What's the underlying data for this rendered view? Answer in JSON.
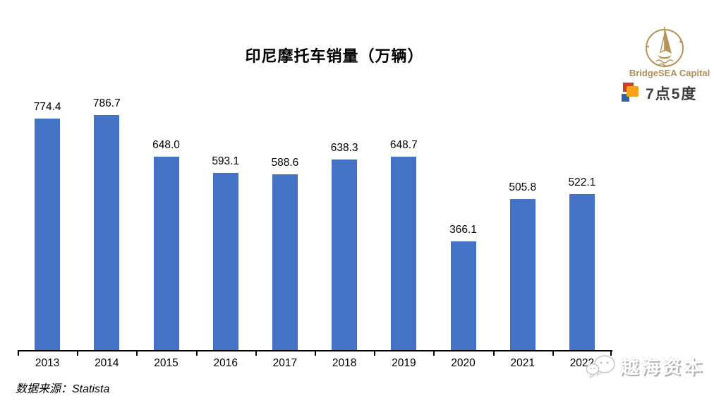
{
  "chart_data": {
    "type": "bar",
    "title": "印尼摩托车销量（万辆）",
    "categories": [
      "2013",
      "2014",
      "2015",
      "2016",
      "2017",
      "2018",
      "2019",
      "2020",
      "2021",
      "2022"
    ],
    "values": [
      774.4,
      786.7,
      648.0,
      593.1,
      588.6,
      638.3,
      648.7,
      366.1,
      505.8,
      522.1
    ],
    "value_labels": [
      "774.4",
      "786.7",
      "648.0",
      "593.1",
      "588.6",
      "638.3",
      "648.7",
      "366.1",
      "505.8",
      "522.1"
    ],
    "bar_color": "#4472C4",
    "ylim": [
      0,
      900
    ],
    "grid": false,
    "legend": "none",
    "xlabel": "",
    "ylabel": "",
    "source_note": "数据来源：Statista"
  },
  "footer": {
    "source": "数据来源：Statista"
  },
  "branding": {
    "bridgesea_label": "BridgeSEA Capital",
    "gold": "#ae8f58",
    "logo_7d5": {
      "chars": [
        "7",
        "点",
        "5",
        "度"
      ],
      "red": "#d43b2a",
      "orange": "#f6a21d",
      "blue": "#2e64a6"
    }
  },
  "watermark": {
    "label": "越海资本"
  }
}
